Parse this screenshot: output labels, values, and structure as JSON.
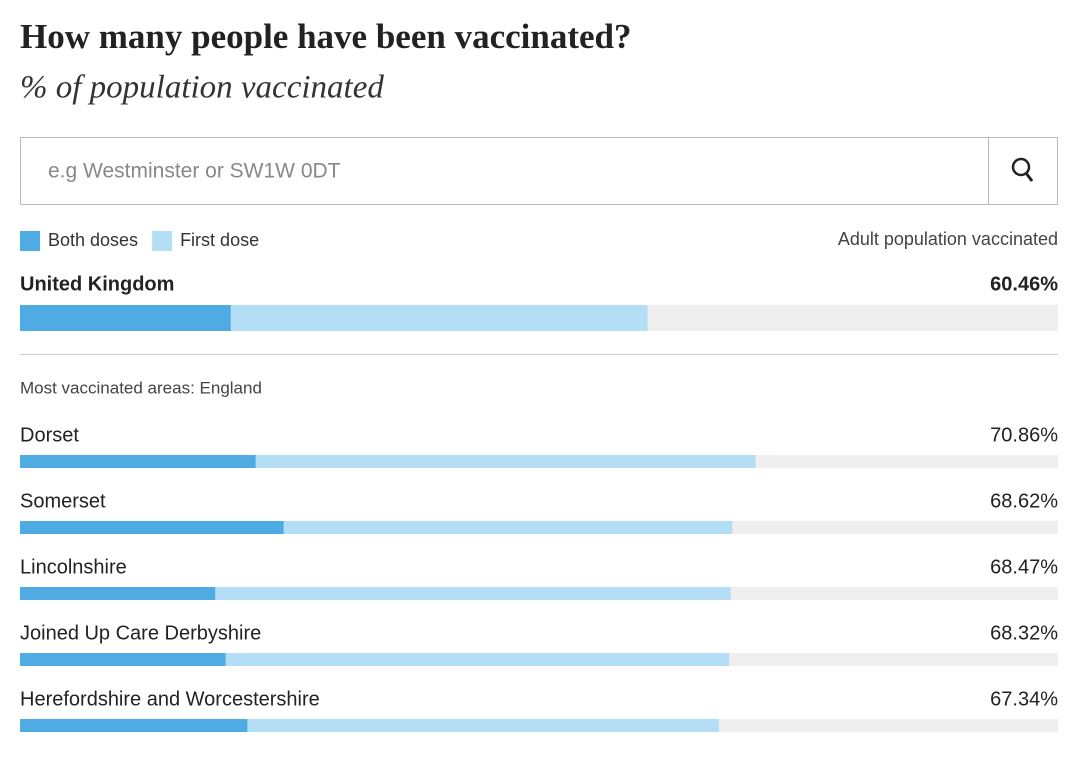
{
  "chart_data": {
    "type": "bar",
    "orientation": "horizontal",
    "title": "How many people have been vaccinated?",
    "subtitle": "% of population vaccinated",
    "search_placeholder": "e.g Westminster or SW1W 0DT",
    "value_header": "Adult population vaccinated",
    "section_label": "Most vaccinated areas: England",
    "categories": [
      "United Kingdom",
      "Dorset",
      "Somerset",
      "Lincolnshire",
      "Joined Up Care Derbyshire",
      "Herefordshire and Worcestershire"
    ],
    "series": [
      {
        "name": "Both doses",
        "color": "#4fabe3",
        "values": [
          20.3,
          22.7,
          25.4,
          18.8,
          19.8,
          21.9
        ]
      },
      {
        "name": "First dose",
        "color": "#b3def5",
        "values": [
          60.46,
          70.86,
          68.62,
          68.47,
          68.32,
          67.34
        ],
        "value_labels": [
          "60.46%",
          "70.86%",
          "68.62%",
          "68.47%",
          "68.32%",
          "67.34%"
        ]
      }
    ],
    "xlim": [
      0,
      100
    ],
    "track_color": "#efefef"
  }
}
